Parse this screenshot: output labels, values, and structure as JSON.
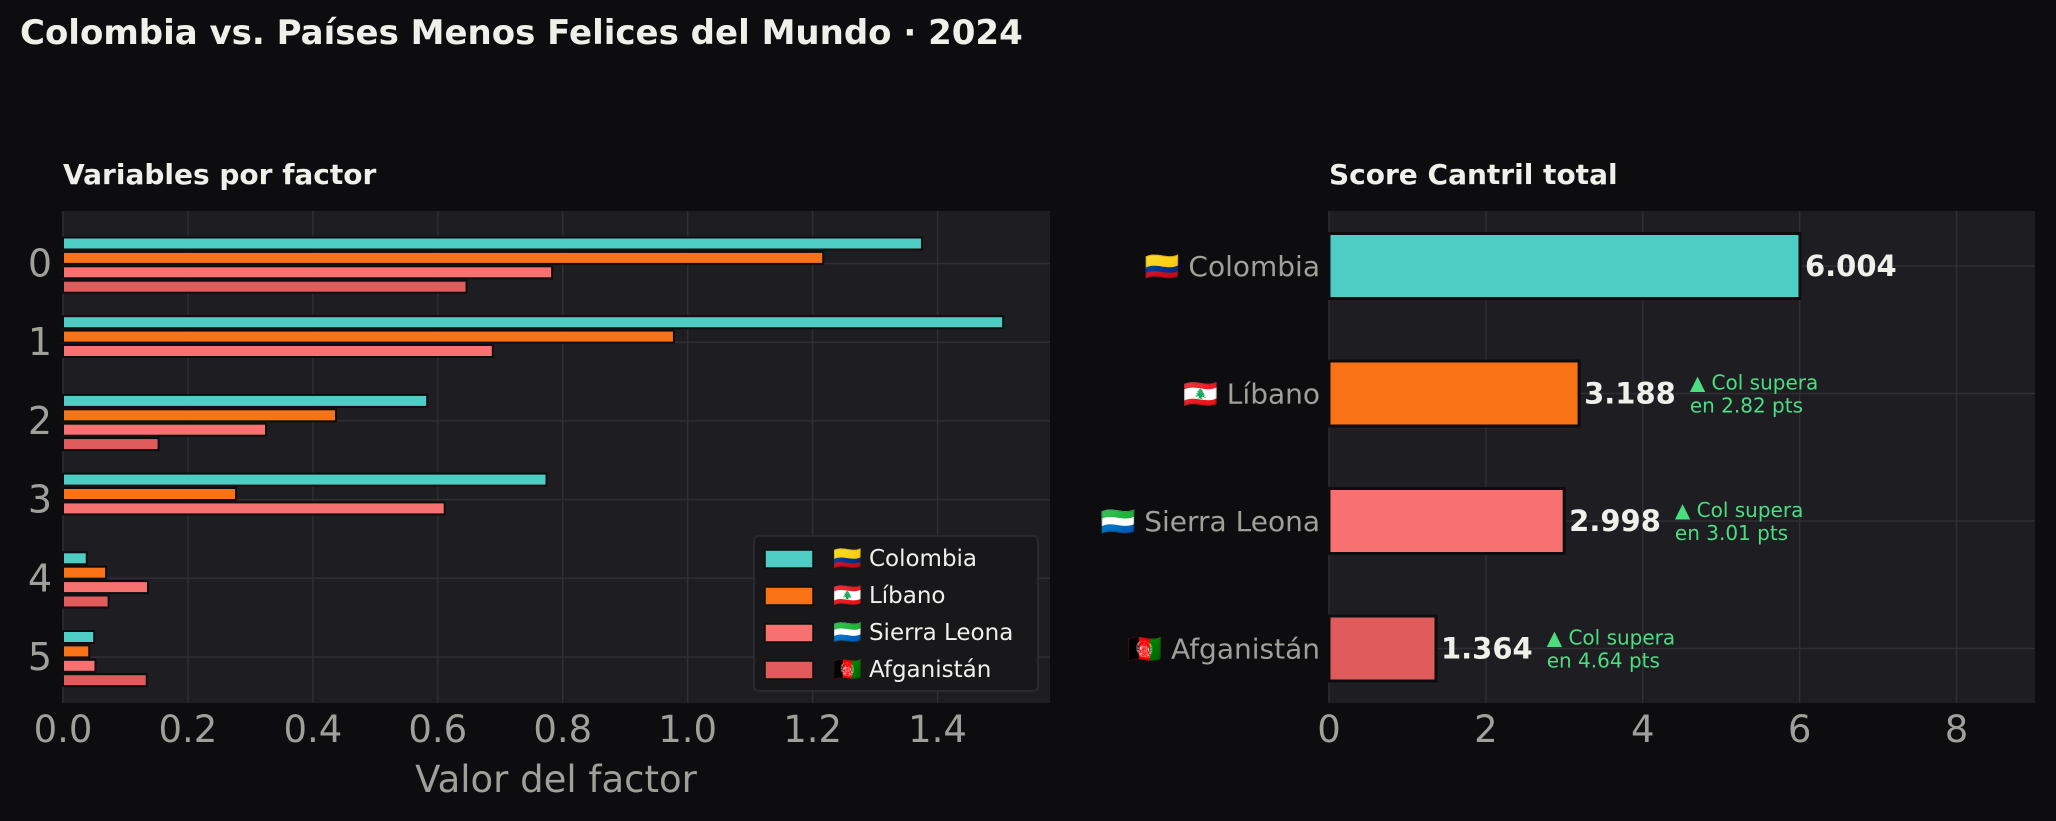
{
  "title": "Colombia vs. Países Menos Felices del Mundo · 2024",
  "colors": {
    "background": "#0d0d0f",
    "panel": "#1e1e22",
    "grid": "#2e2e33",
    "tick": "#a0a09a",
    "text": "#f0f0ea",
    "annotation": "#4ade80"
  },
  "chart_data": [
    {
      "type": "bar",
      "orientation": "horizontal",
      "title": "Variables por factor",
      "xlabel": "Valor del factor",
      "ylabel": "",
      "categories": [
        "0",
        "1",
        "2",
        "3",
        "4",
        "5"
      ],
      "xlim": [
        0,
        1.58
      ],
      "xticks": [
        "0.0",
        "0.2",
        "0.4",
        "0.6",
        "0.8",
        "1.0",
        "1.2",
        "1.4"
      ],
      "grid": true,
      "legend_position": "bottom-right",
      "series": [
        {
          "name": "🇨🇴 Colombia",
          "color": "#4ecdc4",
          "values": [
            1.375,
            1.505,
            0.583,
            0.774,
            0.038,
            0.05
          ]
        },
        {
          "name": "🇱🇧 Líbano",
          "color": "#f97316",
          "values": [
            1.217,
            0.978,
            0.437,
            0.277,
            0.069,
            0.042
          ]
        },
        {
          "name": "🇸🇱 Sierra Leona",
          "color": "#f87171",
          "values": [
            0.783,
            0.688,
            0.325,
            0.611,
            0.136,
            0.052
          ]
        },
        {
          "name": "🇦🇫 Afganistán",
          "color": "#e05c5c",
          "values": [
            0.646,
            0.0,
            0.153,
            0.0,
            0.073,
            0.134
          ]
        }
      ]
    },
    {
      "type": "bar",
      "orientation": "horizontal",
      "title": "Score Cantril total",
      "xlabel": "",
      "categories": [
        "🇨🇴 Colombia",
        "🇱🇧 Líbano",
        "🇸🇱 Sierra Leona",
        "🇦🇫 Afganistán"
      ],
      "values": [
        6.004,
        3.188,
        2.998,
        1.364
      ],
      "value_labels": [
        "6.004",
        "3.188",
        "2.998",
        "1.364"
      ],
      "colors": [
        "#4ecdc4",
        "#f97316",
        "#f87171",
        "#e05c5c"
      ],
      "annotations": [
        null,
        [
          "▲ Col supera",
          "en 2.82 pts"
        ],
        [
          "▲ Col supera",
          "en 3.01 pts"
        ],
        [
          "▲ Col supera",
          "en 4.64 pts"
        ]
      ],
      "xlim": [
        0,
        9
      ],
      "xticks": [
        "0",
        "2",
        "4",
        "6",
        "8"
      ],
      "grid": true
    }
  ]
}
